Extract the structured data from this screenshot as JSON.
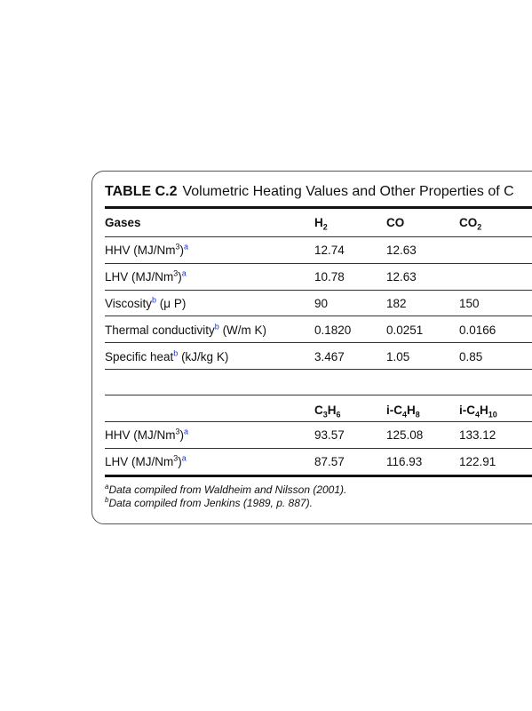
{
  "table": {
    "number": "TABLE C.2",
    "title": "Volumetric Heating Values and Other Properties of C",
    "header1": {
      "label": "Gases",
      "col1": {
        "base": "H",
        "sub": "2"
      },
      "col2": "CO",
      "col3": {
        "base": "CO",
        "sub": "2"
      }
    },
    "rows1": [
      {
        "label": "HHV (MJ/Nm",
        "sup": "3",
        "tail": ")",
        "fn": "a",
        "v1": "12.74",
        "v2": "12.63",
        "v3": ""
      },
      {
        "label": "LHV (MJ/Nm",
        "sup": "3",
        "tail": ")",
        "fn": "a",
        "v1": "10.78",
        "v2": "12.63",
        "v3": ""
      },
      {
        "label": "Viscosity",
        "fn": "b",
        "tail": " (μ P)",
        "v1": "90",
        "v2": "182",
        "v3": "150"
      },
      {
        "label": "Thermal conductivity",
        "fn": "b",
        "tail": " (W/m K)",
        "v1": "0.1820",
        "v2": "0.0251",
        "v3": "0.0166"
      },
      {
        "label": "Specific heat",
        "fn": "b",
        "tail": " (kJ/kg K)",
        "v1": "3.467",
        "v2": "1.05",
        "v3": "0.85"
      }
    ],
    "header2": {
      "col1": {
        "a": "C",
        "s1": "3",
        "b": "H",
        "s2": "6"
      },
      "col2": {
        "a": "i-C",
        "s1": "4",
        "b": "H",
        "s2": "8"
      },
      "col3": {
        "a": "i-C",
        "s1": "4",
        "b": "H",
        "s2": "10"
      }
    },
    "rows2": [
      {
        "label": "HHV (MJ/Nm",
        "sup": "3",
        "tail": ")",
        "fn": "a",
        "v1": "93.57",
        "v2": "125.08",
        "v3": "133.12"
      },
      {
        "label": "LHV (MJ/Nm",
        "sup": "3",
        "tail": ")",
        "fn": "a",
        "v1": "87.57",
        "v2": "116.93",
        "v3": "122.91"
      }
    ],
    "footnotes": [
      {
        "mark": "a",
        "text": "Data compiled from Waldheim and Nilsson (2001)."
      },
      {
        "mark": "b",
        "text": "Data compiled from Jenkins (1989, p. 887)."
      }
    ]
  }
}
